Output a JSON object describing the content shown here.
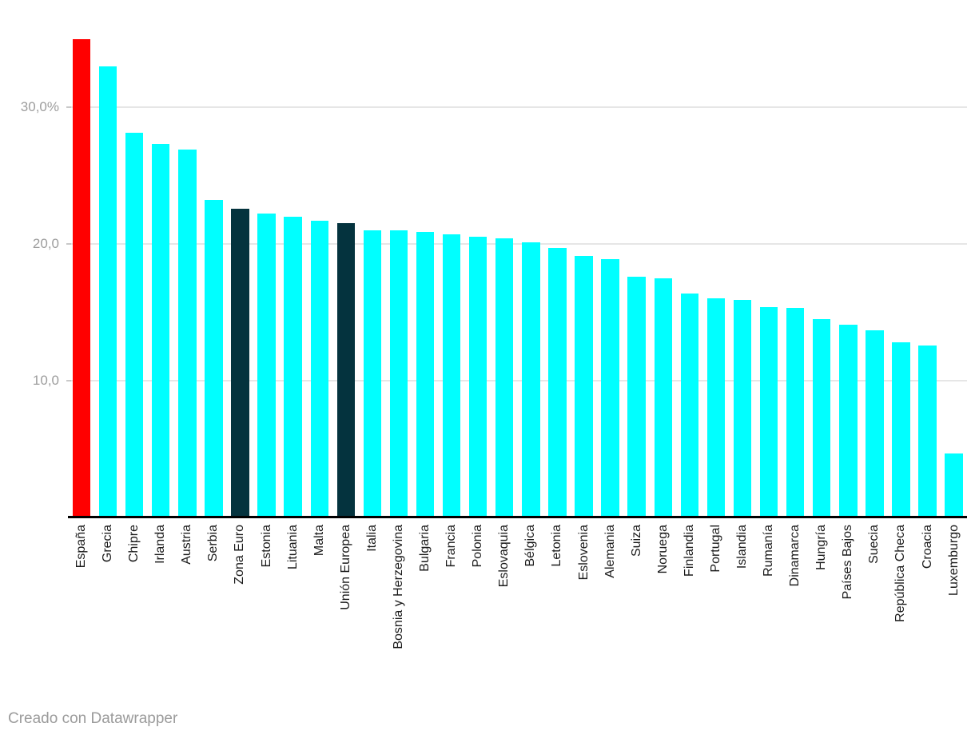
{
  "chart_data": {
    "type": "bar",
    "title": "",
    "xlabel": "",
    "ylabel": "",
    "categories": [
      "España",
      "Grecia",
      "Chipre",
      "Irlanda",
      "Austria",
      "Serbia",
      "Zona Euro",
      "Estonia",
      "Lituania",
      "Malta",
      "Unión Europea",
      "Italia",
      "Bosnia y Herzegovina",
      "Bulgaria",
      "Francia",
      "Polonia",
      "Eslovaquia",
      "Bélgica",
      "Letonia",
      "Eslovenia",
      "Alemania",
      "Suiza",
      "Noruega",
      "Finlandia",
      "Portugal",
      "Islandia",
      "Rumanía",
      "Dinamarca",
      "Hungría",
      "Países Bajos",
      "Suecia",
      "República Checa",
      "Croacia",
      "Luxemburgo"
    ],
    "values": [
      35.0,
      33.0,
      28.1,
      27.3,
      26.9,
      23.2,
      22.6,
      22.2,
      22.0,
      21.7,
      21.5,
      21.0,
      21.0,
      20.9,
      20.7,
      20.5,
      20.4,
      20.1,
      19.7,
      19.1,
      18.9,
      17.6,
      17.5,
      16.4,
      16.0,
      15.9,
      15.4,
      15.3,
      14.5,
      14.1,
      13.7,
      12.8,
      12.6,
      4.7
    ],
    "default_bar_color": "#00ffff",
    "color_overrides": {
      "España": "#ff0000",
      "Zona Euro": "#04333e",
      "Unión Europea": "#04333e"
    },
    "y_axis": {
      "range": [
        0,
        35.5
      ],
      "grid": true,
      "ticks": [
        {
          "value": 30,
          "label": "30,0%"
        },
        {
          "value": 20,
          "label": "20,0"
        },
        {
          "value": 10,
          "label": "10,0"
        }
      ]
    },
    "legend": "none"
  },
  "footer": {
    "credit": "Creado con Datawrapper"
  },
  "colors": {
    "background": "#ffffff",
    "gridline": "#e6e6e6",
    "tick": "#c9c9c9",
    "axis_line": "#000000",
    "y_tick_label": "#9d9d9d",
    "x_label": "#1a1a1a",
    "footer": "#9b9b9b"
  }
}
